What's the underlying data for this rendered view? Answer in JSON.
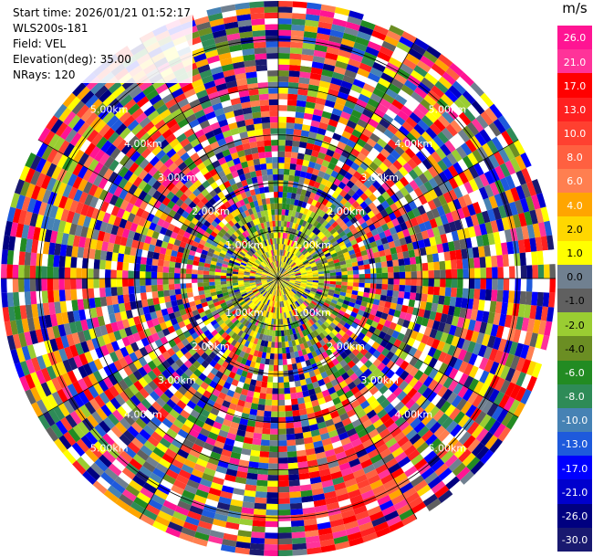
{
  "info": {
    "start_time": "Start time: 2026/01/21 01:52:17",
    "instrument": "WLS200s-181",
    "field": "Field: VEL",
    "elevation": "Elevation(deg): 35.00",
    "nrays": "NRays: 120"
  },
  "colorbar": {
    "unit": "m/s",
    "levels": [
      "26.0",
      "21.0",
      "17.0",
      "13.0",
      "10.0",
      "8.0",
      "6.0",
      "4.0",
      "2.0",
      "1.0",
      "0.0",
      "-1.0",
      "-2.0",
      "-4.0",
      "-6.0",
      "-8.0",
      "-10.0",
      "-13.0",
      "-17.0",
      "-21.0",
      "-26.0",
      "-30.0"
    ],
    "colors": [
      "#ff1493",
      "#ff3399",
      "#ff0000",
      "#ff2020",
      "#ff4030",
      "#ff6040",
      "#ff7f50",
      "#ffa500",
      "#ffd700",
      "#ffff00",
      "#708090",
      "#606060",
      "#9acd32",
      "#6b8e23",
      "#228b22",
      "#2e8b57",
      "#4682b4",
      "#1e5adc",
      "#0000ff",
      "#0000cd",
      "#000080",
      "#191970"
    ]
  },
  "chart_data": {
    "type": "heatmap",
    "projection": "polar PPI",
    "field": "VEL",
    "unit": "m/s",
    "n_rays": 120,
    "elevation_deg": 35.0,
    "range_rings_km": [
      1,
      2,
      3,
      4,
      5
    ],
    "ring_labels": [
      "1.00km",
      "2.00km",
      "3.00km",
      "4.00km",
      "5.00km"
    ],
    "max_range_km": 5.8,
    "spokes_deg": [
      0,
      30,
      60,
      90,
      120,
      150,
      180,
      210,
      240,
      270,
      300,
      330
    ],
    "color_range": [
      -30,
      30
    ],
    "grid": true
  }
}
